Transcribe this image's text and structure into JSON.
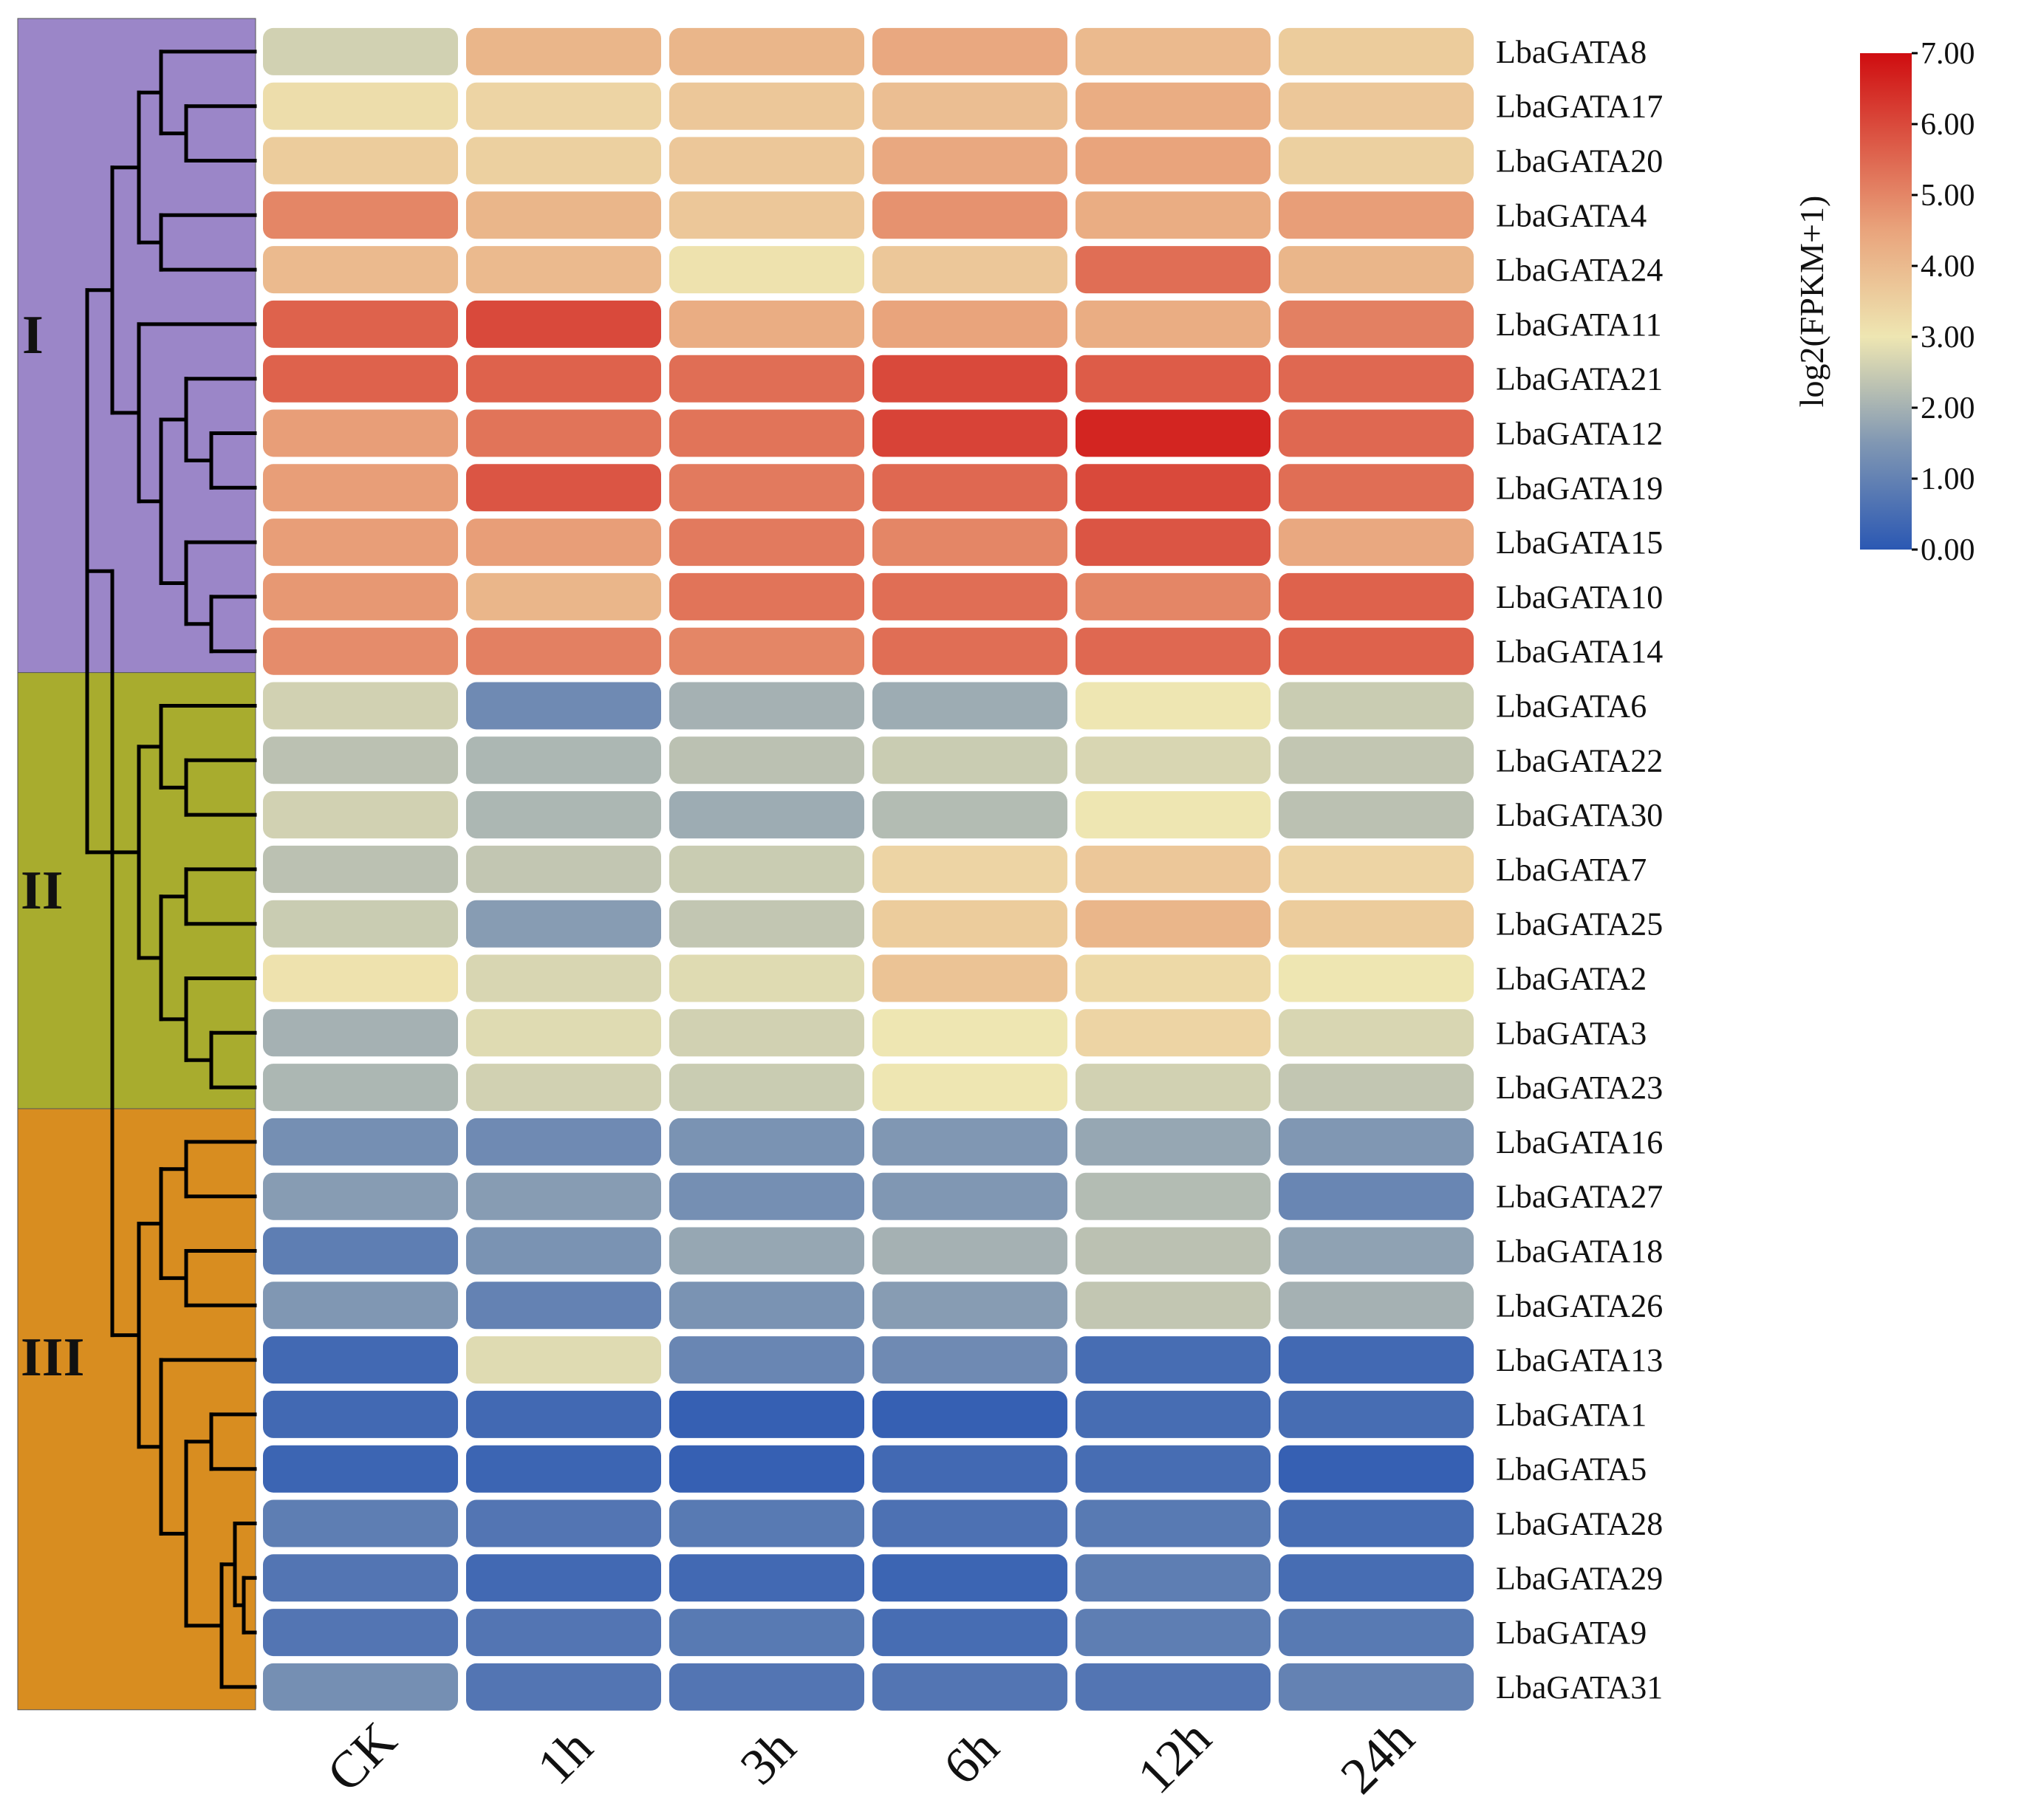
{
  "chart_data": {
    "type": "heatmap",
    "columns": [
      "CK",
      "1h",
      "3h",
      "6h",
      "12h",
      "24h"
    ],
    "rows": [
      "LbaGATA8",
      "LbaGATA17",
      "LbaGATA20",
      "LbaGATA4",
      "LbaGATA24",
      "LbaGATA11",
      "LbaGATA21",
      "LbaGATA12",
      "LbaGATA19",
      "LbaGATA15",
      "LbaGATA10",
      "LbaGATA14",
      "LbaGATA6",
      "LbaGATA22",
      "LbaGATA30",
      "LbaGATA7",
      "LbaGATA25",
      "LbaGATA2",
      "LbaGATA3",
      "LbaGATA23",
      "LbaGATA16",
      "LbaGATA27",
      "LbaGATA18",
      "LbaGATA26",
      "LbaGATA13",
      "LbaGATA1",
      "LbaGATA5",
      "LbaGATA28",
      "LbaGATA29",
      "LbaGATA9",
      "LbaGATA31"
    ],
    "values": [
      [
        2.6,
        4.1,
        4.1,
        4.4,
        4.0,
        3.6
      ],
      [
        3.2,
        3.4,
        3.7,
        3.9,
        4.3,
        3.7
      ],
      [
        3.6,
        3.5,
        3.7,
        4.4,
        4.5,
        3.5
      ],
      [
        5.0,
        4.1,
        3.7,
        4.8,
        4.3,
        4.6
      ],
      [
        4.0,
        4.0,
        3.1,
        3.7,
        5.4,
        4.1
      ],
      [
        5.6,
        6.0,
        4.3,
        4.5,
        4.3,
        5.1
      ],
      [
        5.6,
        5.6,
        5.4,
        6.0,
        5.7,
        5.5
      ],
      [
        4.6,
        5.3,
        5.3,
        6.1,
        6.6,
        5.5
      ],
      [
        4.6,
        5.8,
        5.2,
        5.5,
        6.0,
        5.4
      ],
      [
        4.6,
        4.6,
        5.2,
        5.0,
        5.8,
        4.4
      ],
      [
        4.7,
        4.1,
        5.3,
        5.4,
        5.0,
        5.6
      ],
      [
        4.9,
        5.1,
        5.0,
        5.4,
        5.5,
        5.6
      ],
      [
        2.6,
        1.2,
        2.0,
        1.9,
        3.0,
        2.5
      ],
      [
        2.3,
        2.1,
        2.3,
        2.5,
        2.7,
        2.4
      ],
      [
        2.6,
        2.1,
        1.9,
        2.2,
        3.0,
        2.3
      ],
      [
        2.3,
        2.4,
        2.5,
        3.4,
        3.7,
        3.4
      ],
      [
        2.5,
        1.6,
        2.4,
        3.6,
        4.1,
        3.6
      ],
      [
        3.1,
        2.7,
        2.8,
        3.8,
        3.3,
        3.0
      ],
      [
        2.0,
        2.8,
        2.6,
        3.0,
        3.4,
        2.7
      ],
      [
        2.1,
        2.6,
        2.5,
        3.0,
        2.6,
        2.4
      ],
      [
        1.3,
        1.2,
        1.4,
        1.5,
        1.8,
        1.5
      ],
      [
        1.6,
        1.6,
        1.3,
        1.5,
        2.2,
        1.1
      ],
      [
        0.9,
        1.4,
        1.8,
        2.0,
        2.3,
        1.7
      ],
      [
        1.5,
        1.0,
        1.4,
        1.6,
        2.4,
        2.0
      ],
      [
        0.4,
        2.8,
        1.1,
        1.2,
        0.5,
        0.4
      ],
      [
        0.4,
        0.4,
        0.2,
        0.2,
        0.5,
        0.5
      ],
      [
        0.3,
        0.3,
        0.2,
        0.4,
        0.5,
        0.2
      ],
      [
        0.9,
        0.7,
        0.8,
        0.6,
        0.8,
        0.5
      ],
      [
        0.7,
        0.4,
        0.4,
        0.3,
        0.9,
        0.5
      ],
      [
        0.7,
        0.7,
        0.8,
        0.5,
        0.9,
        0.8
      ],
      [
        1.3,
        0.7,
        0.7,
        0.7,
        0.7,
        1.0
      ]
    ],
    "groups": [
      {
        "label": "I",
        "first_row": 0,
        "last_row": 11,
        "color": "#9b86c8"
      },
      {
        "label": "II",
        "first_row": 12,
        "last_row": 19,
        "color": "#a8ac2e"
      },
      {
        "label": "III",
        "first_row": 20,
        "last_row": 30,
        "color": "#d88d20"
      }
    ],
    "colorbar": {
      "title": "log2(FPKM+1)",
      "range": [
        0,
        7
      ],
      "ticks": [
        "0.00",
        "1.00",
        "2.00",
        "3.00",
        "4.00",
        "5.00",
        "6.00",
        "7.00"
      ],
      "stops": [
        {
          "value": 0,
          "color": "#2b58b3"
        },
        {
          "value": 1.5,
          "color": "#8097b3"
        },
        {
          "value": 3.0,
          "color": "#eee6b2"
        },
        {
          "value": 4.5,
          "color": "#e9a47c"
        },
        {
          "value": 7.0,
          "color": "#cf0d10"
        }
      ]
    }
  }
}
